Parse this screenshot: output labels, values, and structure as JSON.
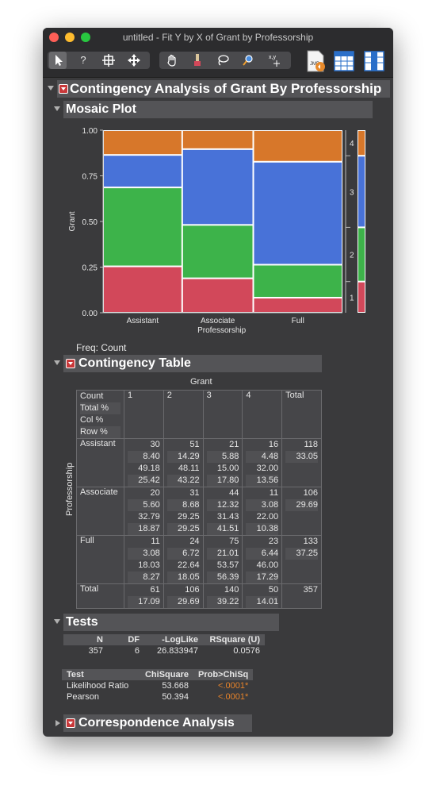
{
  "window": {
    "title": "untitled - Fit Y by X of Grant by Professorship"
  },
  "colors": {
    "cat1": "#d2485a",
    "cat2": "#3db34a",
    "cat3": "#4872d8",
    "cat4": "#d7772a"
  },
  "toolbar": {
    "icons": [
      "arrow-tool",
      "help-tool",
      "brush-select-tool",
      "move-tool",
      "hand-tool",
      "brush-tool",
      "lasso-tool",
      "zoom-tool",
      "crosshair-tool",
      "jmp-script-icon",
      "data-table-icon",
      "column-layout-icon"
    ]
  },
  "analysis": {
    "title": "Contingency Analysis of Grant By Professorship"
  },
  "mosaic": {
    "title": "Mosaic Plot",
    "ylabel": "Grant",
    "yticks": [
      "0.00",
      "0.25",
      "0.50",
      "0.75",
      "1.00"
    ],
    "xlabels": [
      "Assistant",
      "Associate\nProfessorship",
      "Full"
    ],
    "right_labels": [
      "1",
      "2",
      "3",
      "4"
    ],
    "freq": "Freq: Count"
  },
  "chart_data": {
    "type": "mosaic",
    "categories": [
      "Assistant",
      "Associate",
      "Full"
    ],
    "widths": [
      118,
      106,
      133
    ],
    "series": [
      {
        "name": "1",
        "values": [
          0.2542,
          0.1887,
          0.0827
        ]
      },
      {
        "name": "2",
        "values": [
          0.4322,
          0.2925,
          0.1805
        ]
      },
      {
        "name": "3",
        "values": [
          0.178,
          0.4151,
          0.5639
        ]
      },
      {
        "name": "4",
        "values": [
          0.1356,
          0.1038,
          0.1729
        ]
      }
    ],
    "marginal": [
      0.1709,
      0.2969,
      0.3922,
      0.1401
    ],
    "xlabel": "Professorship",
    "ylabel": "Grant",
    "ylim": [
      0,
      1
    ]
  },
  "contingency": {
    "title": "Contingency Table",
    "col_group": "Grant",
    "row_group": "Professorship",
    "stat_labels": [
      "Count",
      "Total %",
      "Col %",
      "Row %"
    ],
    "columns": [
      "1",
      "2",
      "3",
      "4",
      "Total"
    ],
    "rows": [
      {
        "label": "Assistant",
        "cells": [
          [
            "30",
            "8.40",
            "49.18",
            "25.42"
          ],
          [
            "51",
            "14.29",
            "48.11",
            "43.22"
          ],
          [
            "21",
            "5.88",
            "15.00",
            "17.80"
          ],
          [
            "16",
            "4.48",
            "32.00",
            "13.56"
          ],
          [
            "118",
            "33.05"
          ]
        ]
      },
      {
        "label": "Associate",
        "cells": [
          [
            "20",
            "5.60",
            "32.79",
            "18.87"
          ],
          [
            "31",
            "8.68",
            "29.25",
            "29.25"
          ],
          [
            "44",
            "12.32",
            "31.43",
            "41.51"
          ],
          [
            "11",
            "3.08",
            "22.00",
            "10.38"
          ],
          [
            "106",
            "29.69"
          ]
        ]
      },
      {
        "label": "Full",
        "cells": [
          [
            "11",
            "3.08",
            "18.03",
            "8.27"
          ],
          [
            "24",
            "6.72",
            "22.64",
            "18.05"
          ],
          [
            "75",
            "21.01",
            "53.57",
            "56.39"
          ],
          [
            "23",
            "6.44",
            "46.00",
            "17.29"
          ],
          [
            "133",
            "37.25"
          ]
        ]
      },
      {
        "label": "Total",
        "cells": [
          [
            "61",
            "17.09"
          ],
          [
            "106",
            "29.69"
          ],
          [
            "140",
            "39.22"
          ],
          [
            "50",
            "14.01"
          ],
          [
            "357"
          ]
        ]
      }
    ]
  },
  "tests": {
    "title": "Tests",
    "summary_headers": [
      "N",
      "DF",
      "-LogLike",
      "RSquare (U)"
    ],
    "summary_values": [
      "357",
      "6",
      "26.833947",
      "0.0576"
    ],
    "chi_headers": [
      "Test",
      "ChiSquare",
      "Prob>ChiSq"
    ],
    "chi_rows": [
      [
        "Likelihood Ratio",
        "53.668",
        "<.0001*"
      ],
      [
        "Pearson",
        "50.394",
        "<.0001*"
      ]
    ]
  },
  "correspondence": {
    "title": "Correspondence Analysis"
  }
}
